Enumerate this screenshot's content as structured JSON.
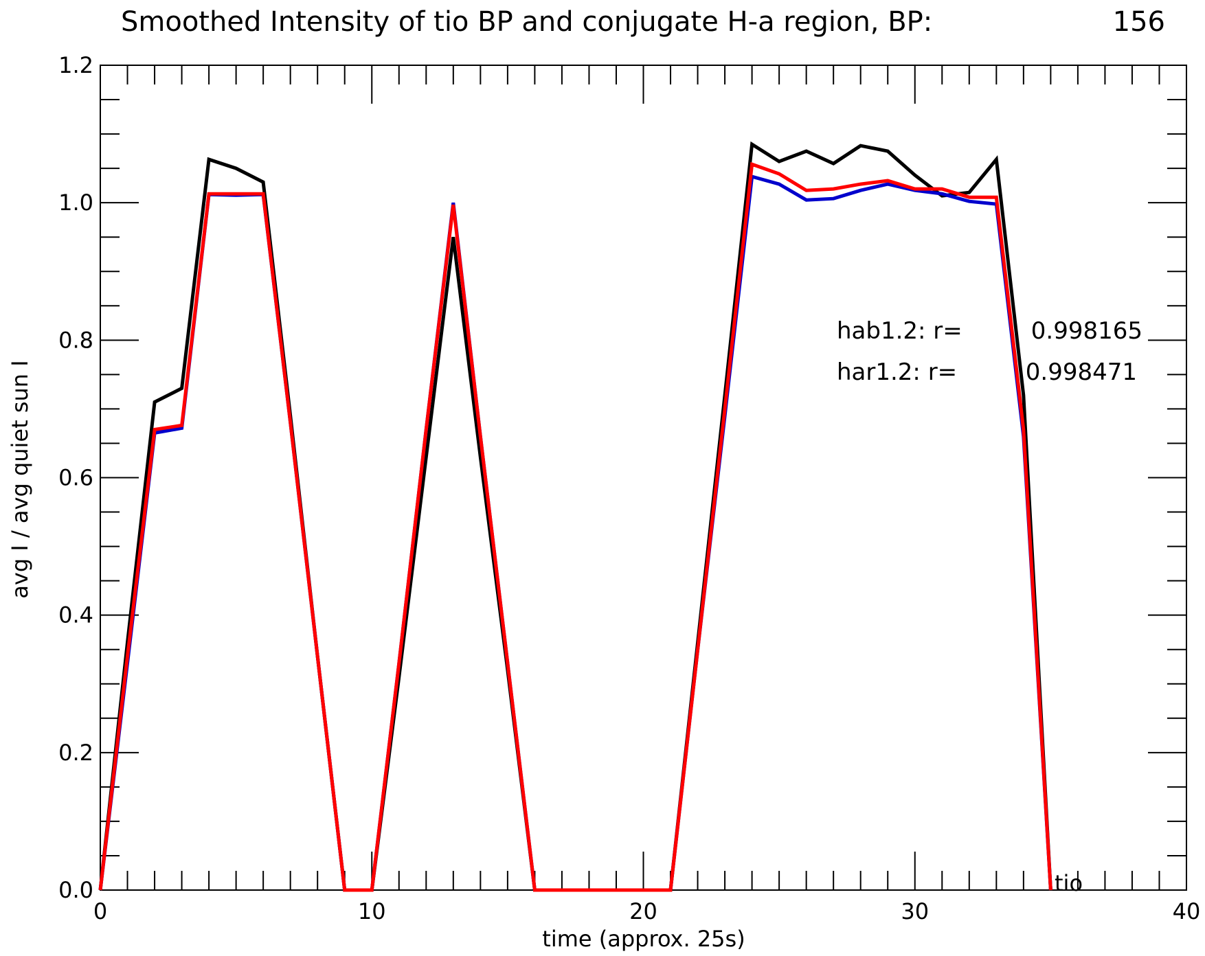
{
  "chart_data": {
    "type": "line",
    "title": "Smoothed Intensity of tio BP and conjugate H-a region, BP:",
    "title_value": "156",
    "xlabel": "time (approx. 25s)",
    "ylabel": "avg I / avg quiet sun I",
    "xlim": [
      0,
      40
    ],
    "ylim": [
      0,
      1.2
    ],
    "xticks": [
      0,
      10,
      20,
      30,
      40
    ],
    "xtick_labels": [
      "0",
      "10",
      "20",
      "30",
      "40"
    ],
    "yticks": [
      0,
      0.2,
      0.4,
      0.6,
      0.8,
      1.0,
      1.2
    ],
    "ytick_labels": [
      "0.0",
      "0.2",
      "0.4",
      "0.6",
      "0.8",
      "1.0",
      "1.2"
    ],
    "grid": false,
    "x": [
      0,
      1,
      2,
      3,
      4,
      5,
      6,
      7,
      8,
      9,
      10,
      11,
      12,
      13,
      14,
      15,
      16,
      17,
      18,
      19,
      20,
      21,
      22,
      23,
      24,
      25,
      26,
      27,
      28,
      29,
      30,
      31,
      32,
      33,
      34,
      35
    ],
    "series": [
      {
        "color": "#000000",
        "values": [
          0.0,
          0.36,
          0.71,
          0.73,
          1.063,
          1.05,
          1.03,
          0.69,
          0.34,
          0.0,
          0.0,
          0.31,
          0.63,
          0.95,
          0.63,
          0.32,
          0.0,
          0.0,
          0.0,
          0.0,
          0.0,
          0.0,
          0.36,
          0.72,
          1.085,
          1.06,
          1.075,
          1.057,
          1.083,
          1.075,
          1.04,
          1.01,
          1.015,
          1.063,
          0.72,
          0.0
        ]
      },
      {
        "color": "#0000cc",
        "values": [
          0.0,
          0.33,
          0.665,
          0.672,
          1.012,
          1.011,
          1.012,
          0.68,
          0.34,
          0.0,
          0.0,
          0.33,
          0.67,
          1.0,
          0.66,
          0.33,
          0.0,
          0.0,
          0.0,
          0.0,
          0.0,
          0.0,
          0.35,
          0.69,
          1.038,
          1.027,
          1.004,
          1.006,
          1.018,
          1.027,
          1.018,
          1.013,
          1.002,
          0.998,
          0.66,
          0.0
        ]
      },
      {
        "color": "#ff0000",
        "values": [
          0.0,
          0.34,
          0.67,
          0.676,
          1.013,
          1.013,
          1.013,
          0.68,
          0.34,
          0.0,
          0.0,
          0.33,
          0.67,
          0.997,
          0.66,
          0.33,
          0.0,
          0.0,
          0.0,
          0.0,
          0.0,
          0.0,
          0.35,
          0.7,
          1.056,
          1.042,
          1.018,
          1.02,
          1.027,
          1.032,
          1.02,
          1.02,
          1.008,
          1.008,
          0.67,
          0.0
        ]
      }
    ],
    "annotations": [
      {
        "label": "hab1.2: r=",
        "value": "0.998165"
      },
      {
        "label": "har1.2: r=",
        "value": "0.998471"
      }
    ],
    "corner_label": "tio"
  }
}
